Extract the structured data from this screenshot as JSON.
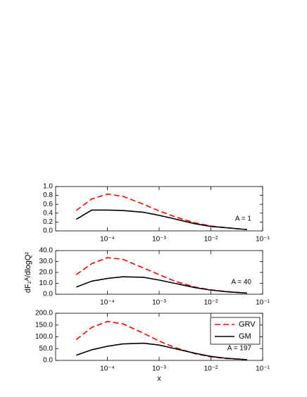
{
  "chart_data": [
    {
      "type": "line",
      "log_x": true,
      "annotation": "A = 1",
      "x": [
        2.5e-05,
        5e-05,
        0.0001,
        0.0002,
        0.0005,
        0.001,
        0.002,
        0.005,
        0.01,
        0.02,
        0.05
      ],
      "series": [
        {
          "color": "#ff0000",
          "dashed": true,
          "values": [
            0.46,
            0.72,
            0.83,
            0.78,
            0.6,
            0.45,
            0.32,
            0.18,
            0.11,
            0.07,
            0.03
          ]
        },
        {
          "color": "#000000",
          "dashed": false,
          "values": [
            0.26,
            0.47,
            0.47,
            0.46,
            0.42,
            0.35,
            0.27,
            0.16,
            0.1,
            0.07,
            0.03
          ]
        }
      ],
      "xlim": [
        1e-05,
        0.1
      ],
      "xticks": [
        {
          "value": 0.0001,
          "label": "10⁻⁴"
        },
        {
          "value": 0.001,
          "label": "10⁻³"
        },
        {
          "value": 0.01,
          "label": "10⁻²"
        },
        {
          "value": 0.1,
          "label": "10⁻¹"
        }
      ],
      "ylim": [
        0,
        1.0
      ],
      "yticks": [
        {
          "value": 0,
          "label": "0.0"
        },
        {
          "value": 0.2,
          "label": "0.2"
        },
        {
          "value": 0.4,
          "label": "0.4"
        },
        {
          "value": 0.6,
          "label": "0.6"
        },
        {
          "value": 0.8,
          "label": "0.8"
        },
        {
          "value": 1.0,
          "label": "1.0"
        }
      ]
    },
    {
      "type": "line",
      "log_x": true,
      "annotation": "A = 40",
      "y_label": "dF₂ᴬ/dlogQ²",
      "x": [
        2.5e-05,
        5e-05,
        0.0001,
        0.0002,
        0.0005,
        0.001,
        0.002,
        0.005,
        0.01,
        0.02,
        0.05
      ],
      "series": [
        {
          "color": "#ff0000",
          "dashed": true,
          "values": [
            18,
            28,
            33.5,
            32,
            24,
            18,
            12,
            6.5,
            4,
            2.5,
            1
          ]
        },
        {
          "color": "#000000",
          "dashed": false,
          "values": [
            6.5,
            12,
            14.5,
            16,
            15.5,
            13,
            10,
            6,
            3.8,
            2.3,
            1
          ]
        }
      ],
      "xlim": [
        1e-05,
        0.1
      ],
      "xticks": [
        {
          "value": 0.0001,
          "label": "10⁻⁴"
        },
        {
          "value": 0.001,
          "label": "10⁻³"
        },
        {
          "value": 0.01,
          "label": "10⁻²"
        },
        {
          "value": 0.1,
          "label": "10⁻¹"
        }
      ],
      "ylim": [
        0,
        40
      ],
      "yticks": [
        {
          "value": 0,
          "label": "0.0"
        },
        {
          "value": 10,
          "label": "10.0"
        },
        {
          "value": 20,
          "label": "20.0"
        },
        {
          "value": 30,
          "label": "30.0"
        },
        {
          "value": 40,
          "label": "40.0"
        }
      ]
    },
    {
      "type": "line",
      "log_x": true,
      "annotation": "A = 197",
      "x_label": "x",
      "legend": "upper right",
      "x": [
        2.5e-05,
        5e-05,
        0.0001,
        0.0002,
        0.0005,
        0.001,
        0.002,
        0.005,
        0.01,
        0.02,
        0.05
      ],
      "series": [
        {
          "name": "GRV",
          "color": "#ff0000",
          "dashed": true,
          "values": [
            88,
            140,
            165,
            155,
            115,
            82,
            55,
            28,
            15,
            8,
            3
          ]
        },
        {
          "name": "GM",
          "color": "#000000",
          "dashed": false,
          "values": [
            22,
            45,
            60,
            70,
            73,
            65,
            50,
            30,
            17,
            9,
            3
          ]
        }
      ],
      "xlim": [
        1e-05,
        0.1
      ],
      "xticks": [
        {
          "value": 0.0001,
          "label": "10⁻⁴"
        },
        {
          "value": 0.001,
          "label": "10⁻³"
        },
        {
          "value": 0.01,
          "label": "10⁻²"
        },
        {
          "value": 0.1,
          "label": "10⁻¹"
        }
      ],
      "ylim": [
        0,
        200
      ],
      "yticks": [
        {
          "value": 0,
          "label": "0.0"
        },
        {
          "value": 50,
          "label": "50.0"
        },
        {
          "value": 100,
          "label": "100.0"
        },
        {
          "value": 150,
          "label": "150.0"
        },
        {
          "value": 200,
          "label": "200.0"
        }
      ]
    }
  ]
}
